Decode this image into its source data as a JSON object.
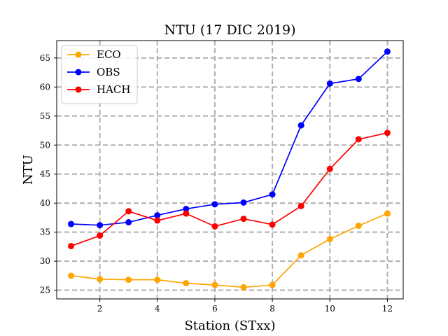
{
  "chart_data": {
    "type": "line",
    "title": "NTU (17 DIC 2019)",
    "xlabel": "Station (STxx)",
    "ylabel": "NTU",
    "x": [
      1,
      2,
      3,
      4,
      5,
      6,
      7,
      8,
      9,
      10,
      11,
      12
    ],
    "xlim": [
      0.5,
      12.55
    ],
    "ylim": [
      23.5,
      68.0
    ],
    "xticks": [
      2,
      4,
      6,
      8,
      10,
      12
    ],
    "yticks": [
      25,
      30,
      35,
      40,
      45,
      50,
      55,
      60,
      65
    ],
    "grid": true,
    "legend_position": "top-left",
    "series": [
      {
        "name": "ECO",
        "color": "#ffa500",
        "values": [
          27.5,
          26.9,
          26.8,
          26.8,
          26.2,
          25.9,
          25.5,
          25.9,
          31.0,
          33.8,
          36.1,
          38.2
        ]
      },
      {
        "name": "OBS",
        "color": "#0000ff",
        "values": [
          36.4,
          36.2,
          36.7,
          37.9,
          39.0,
          39.8,
          40.1,
          41.5,
          53.4,
          60.6,
          61.4,
          66.1
        ]
      },
      {
        "name": "HACH",
        "color": "#ff0000",
        "values": [
          32.6,
          34.4,
          38.6,
          37.0,
          38.2,
          36.0,
          37.3,
          36.3,
          39.5,
          45.9,
          51.0,
          52.1
        ]
      }
    ]
  }
}
